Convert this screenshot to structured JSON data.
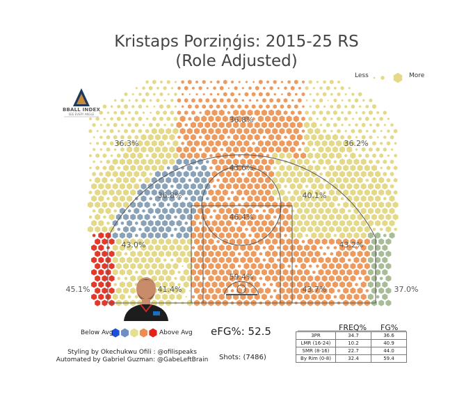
{
  "header": {
    "title_line1": "Kristaps Porziņģis: 2015-25 RS",
    "title_line2": "(Role Adjusted)"
  },
  "size_legend": {
    "less": "Less",
    "more": "More"
  },
  "logo": {
    "name": "BBALL INDEX",
    "tagline": "SEE EVERY ANGLE"
  },
  "color_legend": {
    "below": "Below Avg",
    "above": "Above Avg",
    "colors": [
      "#1f4ed8",
      "#6f8fbf",
      "#e3e08f",
      "#ef8c4f",
      "#e2231a"
    ]
  },
  "colors": {
    "blue": "#8aa2b7",
    "yellow": "#e3d988",
    "orange": "#ec9a5e",
    "red": "#e3392b",
    "sage": "#a8bc98",
    "court_line": "#555555"
  },
  "credits": {
    "line1": "Styling by Okechukwu Ofili : @ofilispeaks",
    "line2": "Automated by Gabriel Guzman: @GabeLeftBrain"
  },
  "efg": "eFG%: 52.5",
  "shots": "Shots: (7486)",
  "chart_data": {
    "type": "heatmap",
    "title": "Kristaps Porziņģis: 2015-25 RS (Role Adjusted)",
    "zones": [
      {
        "name": "Left Corner 3",
        "fg_label": "45.1%",
        "rel": "above_high"
      },
      {
        "name": "Left Wing 3",
        "fg_label": "36.3%",
        "rel": "average"
      },
      {
        "name": "Top of Key 3",
        "fg_label": "36.8%",
        "rel": "above"
      },
      {
        "name": "Right Wing 3",
        "fg_label": "36.2%",
        "rel": "average"
      },
      {
        "name": "Right Corner 3",
        "fg_label": "37.0%",
        "rel": "near_avg"
      },
      {
        "name": "Left Elbow Mid",
        "fg_label": "36.8%",
        "rel": "below"
      },
      {
        "name": "Top Mid-Range",
        "fg_label": "43.6%",
        "rel": "above"
      },
      {
        "name": "Right Elbow Mid",
        "fg_label": "40.1%",
        "rel": "average"
      },
      {
        "name": "Left Baseline Mid",
        "fg_label": "43.0%",
        "rel": "average"
      },
      {
        "name": "Paint (Non-RA)",
        "fg_label": "46.4%",
        "rel": "above"
      },
      {
        "name": "Right Baseline Mid",
        "fg_label": "43.2%",
        "rel": "above"
      },
      {
        "name": "Left Short Corner",
        "fg_label": "41.4%",
        "rel": "average"
      },
      {
        "name": "Restricted Area",
        "fg_label": "59.4%",
        "rel": "above"
      },
      {
        "name": "Right Short Corner",
        "fg_label": "43.7%",
        "rel": "above"
      }
    ],
    "table": {
      "columns": [
        "",
        "FREQ%",
        "FG%"
      ],
      "rows": [
        {
          "label": "3PR",
          "freq": "34.7",
          "fg": "36.6"
        },
        {
          "label": "LMR (16-24)",
          "freq": "10.2",
          "fg": "40.9"
        },
        {
          "label": "SMR (8-16)",
          "freq": "22.7",
          "fg": "44.0"
        },
        {
          "label": "By Rim (0-8)",
          "freq": "32.4",
          "fg": "59.4"
        }
      ]
    },
    "efg_pct": 52.5,
    "shots": 7486
  }
}
